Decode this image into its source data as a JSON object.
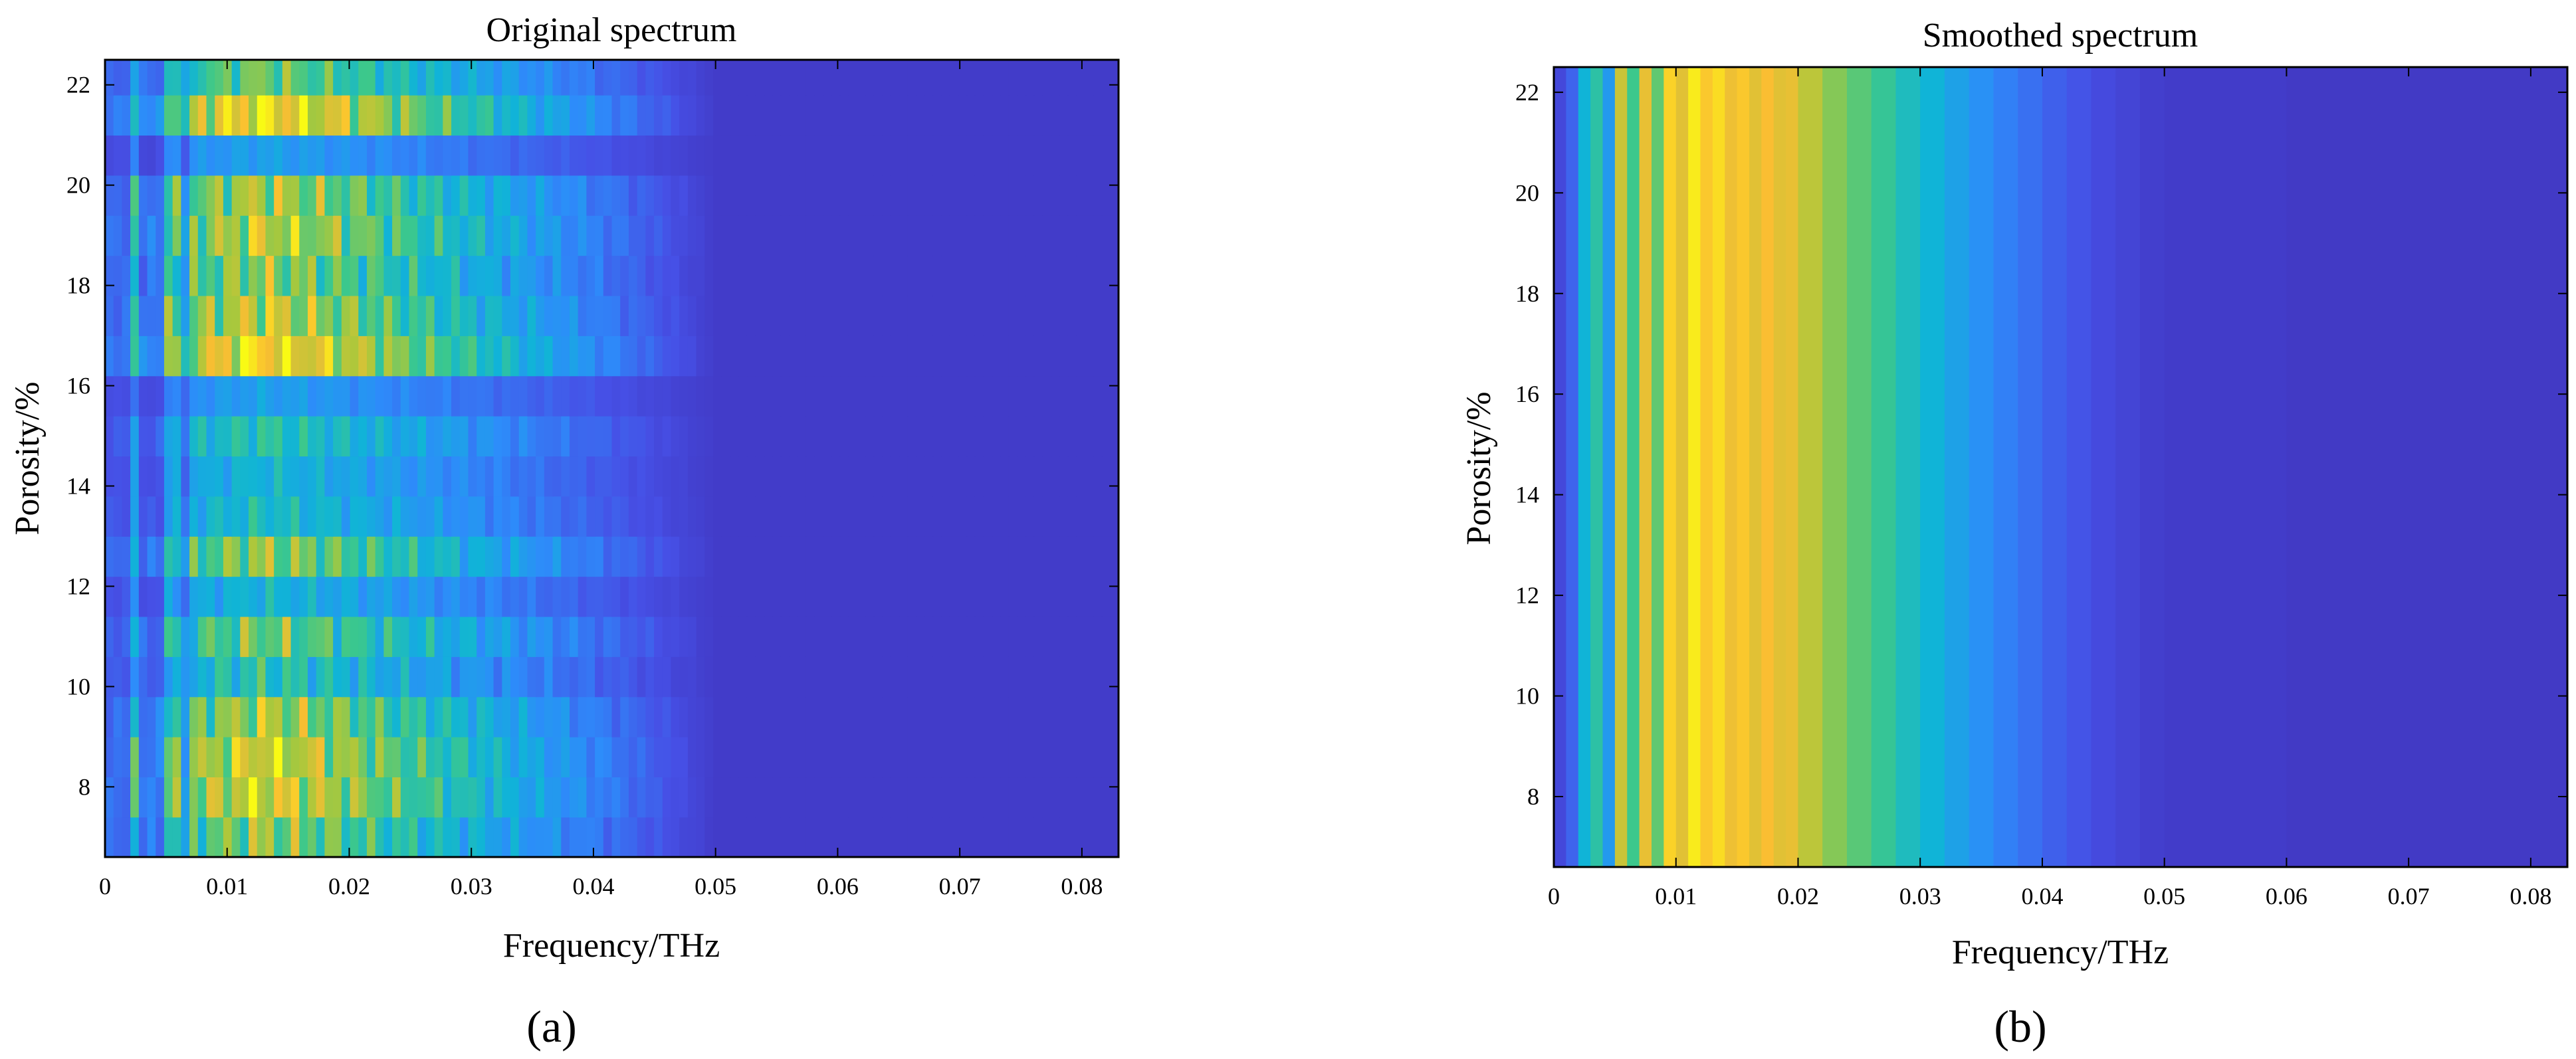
{
  "chart_data": [
    {
      "type": "heatmap",
      "panel_label": "(a)",
      "title": "Original spectrum",
      "xlabel": "Frequency/THz",
      "ylabel": "Porosity/%",
      "xlim": [
        0,
        0.083
      ],
      "ylim": [
        6.6,
        22.5
      ],
      "xticks": [
        0,
        0.01,
        0.02,
        0.03,
        0.04,
        0.05,
        0.06,
        0.07,
        0.08
      ],
      "xtick_labels": [
        "0",
        "0.01",
        "0.02",
        "0.03",
        "0.04",
        "0.05",
        "0.06",
        "0.07",
        "0.08"
      ],
      "yticks": [
        8,
        10,
        12,
        14,
        16,
        18,
        20,
        22
      ],
      "ytick_labels": [
        "8",
        "10",
        "12",
        "14",
        "16",
        "18",
        "20",
        "22"
      ],
      "colormap": "parula",
      "rows": [
        {
          "porosity": 7.0,
          "scale": 0.75,
          "ripple": 0.5
        },
        {
          "porosity": 7.8,
          "scale": 0.9,
          "ripple": 0.4
        },
        {
          "porosity": 8.6,
          "scale": 0.9,
          "ripple": 0.4
        },
        {
          "porosity": 9.4,
          "scale": 0.8,
          "ripple": 0.45
        },
        {
          "porosity": 10.2,
          "scale": 0.55,
          "ripple": 0.55
        },
        {
          "porosity": 11.0,
          "scale": 0.7,
          "ripple": 0.5
        },
        {
          "porosity": 11.8,
          "scale": 0.45,
          "ripple": 0.4
        },
        {
          "porosity": 12.6,
          "scale": 0.75,
          "ripple": 0.45
        },
        {
          "porosity": 13.4,
          "scale": 0.5,
          "ripple": 0.4
        },
        {
          "porosity": 14.2,
          "scale": 0.45,
          "ripple": 0.35
        },
        {
          "porosity": 15.0,
          "scale": 0.55,
          "ripple": 0.4
        },
        {
          "porosity": 15.8,
          "scale": 0.35,
          "ripple": 0.3
        },
        {
          "porosity": 16.6,
          "scale": 1.0,
          "ripple": 0.35
        },
        {
          "porosity": 17.4,
          "scale": 0.85,
          "ripple": 0.45
        },
        {
          "porosity": 18.2,
          "scale": 0.75,
          "ripple": 0.5
        },
        {
          "porosity": 19.0,
          "scale": 0.85,
          "ripple": 0.45
        },
        {
          "porosity": 19.8,
          "scale": 0.8,
          "ripple": 0.45
        },
        {
          "porosity": 20.6,
          "scale": 0.35,
          "ripple": 0.3
        },
        {
          "porosity": 21.4,
          "scale": 1.0,
          "ripple": 0.4
        },
        {
          "porosity": 22.2,
          "scale": 0.7,
          "ripple": 0.4
        }
      ],
      "spectrum_profile": {
        "peak_frequency": 0.013,
        "cutoff_frequency": 0.05,
        "baseline": 0.08
      }
    },
    {
      "type": "heatmap",
      "panel_label": "(b)",
      "title": "Smoothed spectrum",
      "xlabel": "Frequency/THz",
      "ylabel": "Porosity/%",
      "xlim": [
        0,
        0.083
      ],
      "ylim": [
        6.6,
        22.5
      ],
      "xticks": [
        0,
        0.01,
        0.02,
        0.03,
        0.04,
        0.05,
        0.06,
        0.07,
        0.08
      ],
      "xtick_labels": [
        "0",
        "0.01",
        "0.02",
        "0.03",
        "0.04",
        "0.05",
        "0.06",
        "0.07",
        "0.08"
      ],
      "yticks": [
        8,
        10,
        12,
        14,
        16,
        18,
        20,
        22
      ],
      "ytick_labels": [
        "8",
        "10",
        "12",
        "14",
        "16",
        "18",
        "20",
        "22"
      ],
      "colormap": "parula",
      "columns": [
        {
          "f": 0.0,
          "v": 0.12
        },
        {
          "f": 0.001,
          "v": 0.2
        },
        {
          "f": 0.002,
          "v": 0.45
        },
        {
          "f": 0.003,
          "v": 0.55
        },
        {
          "f": 0.004,
          "v": 0.35
        },
        {
          "f": 0.005,
          "v": 0.8
        },
        {
          "f": 0.006,
          "v": 0.6
        },
        {
          "f": 0.007,
          "v": 0.85
        },
        {
          "f": 0.008,
          "v": 0.65
        },
        {
          "f": 0.009,
          "v": 0.92
        },
        {
          "f": 0.01,
          "v": 0.84
        },
        {
          "f": 0.011,
          "v": 0.97
        },
        {
          "f": 0.012,
          "v": 0.9
        },
        {
          "f": 0.013,
          "v": 0.94
        },
        {
          "f": 0.014,
          "v": 0.86
        },
        {
          "f": 0.015,
          "v": 0.9
        },
        {
          "f": 0.016,
          "v": 0.84
        },
        {
          "f": 0.017,
          "v": 0.88
        },
        {
          "f": 0.018,
          "v": 0.84
        },
        {
          "f": 0.019,
          "v": 0.85
        },
        {
          "f": 0.02,
          "v": 0.78
        },
        {
          "f": 0.022,
          "v": 0.7
        },
        {
          "f": 0.024,
          "v": 0.64
        },
        {
          "f": 0.026,
          "v": 0.58
        },
        {
          "f": 0.028,
          "v": 0.5
        },
        {
          "f": 0.03,
          "v": 0.45
        },
        {
          "f": 0.032,
          "v": 0.38
        },
        {
          "f": 0.034,
          "v": 0.32
        },
        {
          "f": 0.036,
          "v": 0.27
        },
        {
          "f": 0.038,
          "v": 0.23
        },
        {
          "f": 0.04,
          "v": 0.19
        },
        {
          "f": 0.042,
          "v": 0.16
        },
        {
          "f": 0.044,
          "v": 0.13
        },
        {
          "f": 0.046,
          "v": 0.11
        },
        {
          "f": 0.048,
          "v": 0.09
        },
        {
          "f": 0.05,
          "v": 0.08
        },
        {
          "f": 0.06,
          "v": 0.07
        },
        {
          "f": 0.083,
          "v": 0.07
        }
      ]
    }
  ]
}
